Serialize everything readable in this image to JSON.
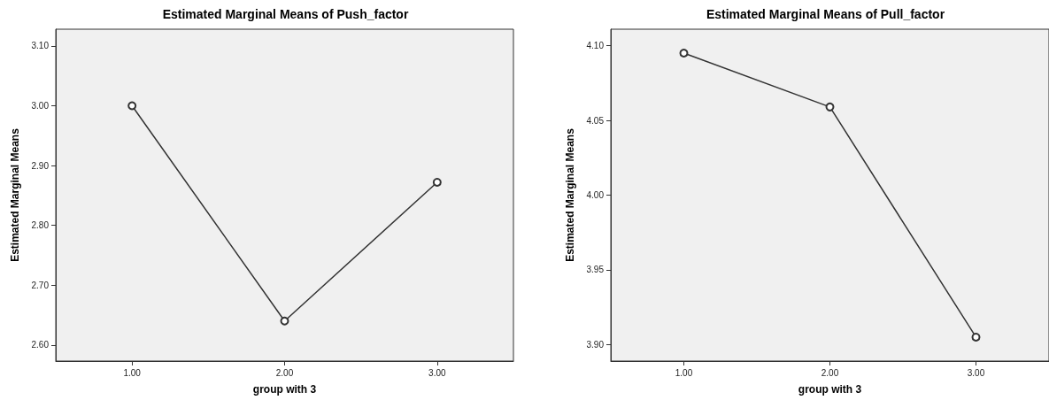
{
  "chart_data": [
    {
      "type": "line",
      "title": "Estimated Marginal Means of Push_factor",
      "xlabel": "group with 3",
      "ylabel": "Estimated Marginal Means",
      "categories": [
        "1.00",
        "2.00",
        "3.00"
      ],
      "series": [
        {
          "color": "#333333",
          "values": [
            3.0,
            2.64,
            2.872
          ]
        }
      ],
      "ylim": [
        2.573,
        3.128
      ],
      "yticks": [
        {
          "value": 2.6,
          "label": "2.60"
        },
        {
          "value": 2.7,
          "label": "2.70"
        },
        {
          "value": 2.8,
          "label": "2.80"
        },
        {
          "value": 2.9,
          "label": "2.90"
        },
        {
          "value": 3.0,
          "label": "3.00"
        },
        {
          "value": 3.1,
          "label": "3.10"
        }
      ],
      "grid": false,
      "marker": "circle",
      "line_style": "solid"
    },
    {
      "type": "line",
      "title": "Estimated Marginal Means of Pull_factor",
      "xlabel": "group with 3",
      "ylabel": "Estimated Marginal Means",
      "categories": [
        "1.00",
        "2.00",
        "3.00"
      ],
      "series": [
        {
          "color": "#333333",
          "values": [
            4.095,
            4.059,
            3.905
          ]
        }
      ],
      "ylim": [
        3.889,
        4.111
      ],
      "yticks": [
        {
          "value": 3.9,
          "label": "3.90"
        },
        {
          "value": 3.95,
          "label": "3.95"
        },
        {
          "value": 4.0,
          "label": "4.00"
        },
        {
          "value": 4.05,
          "label": "4.05"
        },
        {
          "value": 4.1,
          "label": "4.10"
        }
      ],
      "grid": false,
      "marker": "circle",
      "line_style": "solid"
    }
  ]
}
